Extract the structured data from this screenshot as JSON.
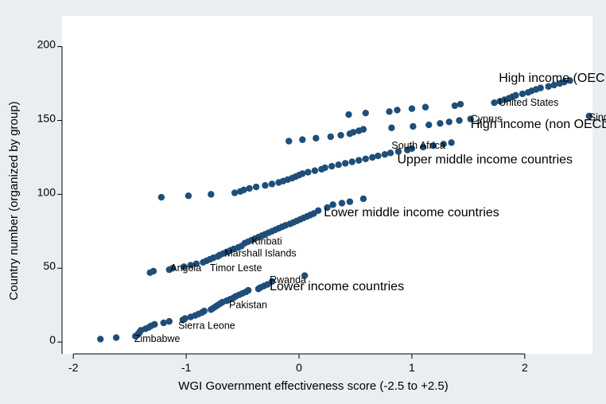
{
  "chart_data": {
    "type": "scatter",
    "xlabel": "WGI Government effectiveness score (-2.5 to +2.5)",
    "ylabel": "Country number (organized by group)",
    "xlim": [
      -2.1,
      2.6
    ],
    "ylim": [
      -8,
      210
    ],
    "xticks": [
      -2,
      -1,
      0,
      1,
      2
    ],
    "yticks": [
      0,
      50,
      100,
      150,
      200
    ],
    "grid": false,
    "colors": {
      "background": "#e9eef3",
      "plot": "#ffffff",
      "marker": "#1f4e79"
    },
    "group_labels": [
      {
        "text": "High income (OECD)",
        "x": 1.77,
        "y": 176
      },
      {
        "text": "High income (non OECD)",
        "x": 1.52,
        "y": 145
      },
      {
        "text": "Upper middle income countries",
        "x": 0.87,
        "y": 121
      },
      {
        "text": "Lower middle income countries",
        "x": 0.22,
        "y": 85
      },
      {
        "text": "Lower income countries",
        "x": -0.26,
        "y": 35
      }
    ],
    "country_labels": [
      {
        "text": "United States",
        "x": 1.77,
        "y": 160
      },
      {
        "text": "Singapore",
        "x": 2.57,
        "y": 150
      },
      {
        "text": "Cyprus",
        "x": 1.52,
        "y": 149
      },
      {
        "text": "South Africa",
        "x": 0.82,
        "y": 131
      },
      {
        "text": "Kiribati",
        "x": -0.42,
        "y": 66
      },
      {
        "text": "Marshall Islands",
        "x": -0.66,
        "y": 58
      },
      {
        "text": "Angola",
        "x": -1.14,
        "y": 48
      },
      {
        "text": "Timor Leste",
        "x": -0.79,
        "y": 48
      },
      {
        "text": "Rwanda",
        "x": -0.26,
        "y": 40
      },
      {
        "text": "Pakistan",
        "x": -0.62,
        "y": 23
      },
      {
        "text": "Sierra Leone",
        "x": -1.07,
        "y": 9
      },
      {
        "text": "Zimbabwe",
        "x": -1.46,
        "y": 0
      }
    ],
    "series": [
      {
        "group": "Lower income countries",
        "x": [
          -1.76,
          -1.62,
          -1.45,
          -1.43,
          -1.42,
          -1.41,
          -1.4,
          -1.36,
          -1.33,
          -1.31,
          -1.28,
          -1.2,
          -1.15,
          -1.03,
          -1.01,
          -0.96,
          -0.92,
          -0.89,
          -0.86,
          -0.84,
          -0.78,
          -0.76,
          -0.74,
          -0.72,
          -0.7,
          -0.68,
          -0.64,
          -0.61,
          -0.58,
          -0.56,
          -0.53,
          -0.5,
          -0.47,
          -0.45,
          -0.36,
          -0.34,
          -0.31,
          -0.28,
          -0.24,
          0.05
        ],
        "y": [
          2,
          3,
          4,
          5,
          6,
          7,
          8,
          9,
          10,
          11,
          12,
          13,
          14,
          15,
          16,
          17,
          18,
          19,
          20,
          21,
          22,
          23,
          24,
          25,
          26,
          27,
          28,
          29,
          30,
          31,
          32,
          33,
          34,
          35,
          36,
          37,
          38,
          39,
          41,
          45
        ]
      },
      {
        "group": "Lower middle income countries",
        "x": [
          -1.32,
          -1.29,
          -1.15,
          -1.12,
          -1.02,
          -0.96,
          -0.91,
          -0.85,
          -0.82,
          -0.79,
          -0.76,
          -0.72,
          -0.7,
          -0.67,
          -0.64,
          -0.61,
          -0.58,
          -0.54,
          -0.51,
          -0.48,
          -0.45,
          -0.42,
          -0.39,
          -0.36,
          -0.33,
          -0.3,
          -0.27,
          -0.24,
          -0.21,
          -0.18,
          -0.15,
          -0.12,
          -0.08,
          -0.05,
          -0.02,
          0.01,
          0.04,
          0.07,
          0.1,
          0.13,
          0.17,
          0.25,
          0.3,
          0.38,
          0.45,
          0.57
        ],
        "y": [
          47,
          48,
          49,
          50,
          51,
          52,
          53,
          54,
          55,
          56,
          57,
          58,
          59,
          60,
          61,
          62,
          63,
          64,
          65,
          67,
          68,
          69,
          70,
          71,
          72,
          73,
          74,
          75,
          76,
          77,
          78,
          79,
          80,
          81,
          82,
          83,
          84,
          85,
          86,
          87,
          89,
          91,
          93,
          94,
          95,
          97
        ]
      },
      {
        "group": "Upper middle income countries",
        "x": [
          -1.22,
          -0.98,
          -0.78,
          -0.57,
          -0.52,
          -0.49,
          -0.44,
          -0.38,
          -0.3,
          -0.24,
          -0.18,
          -0.14,
          -0.1,
          -0.06,
          -0.03,
          0.0,
          0.03,
          0.08,
          0.14,
          0.2,
          0.23,
          0.29,
          0.35,
          0.41,
          0.47,
          0.53,
          0.59,
          0.65,
          0.7,
          0.76,
          0.81,
          0.88,
          0.96,
          1.0,
          1.1,
          1.19,
          1.28,
          1.35
        ],
        "y": [
          98,
          99,
          100,
          101,
          102,
          103,
          104,
          105,
          106,
          107,
          108,
          109,
          110,
          111,
          112,
          113,
          114,
          115,
          116,
          117,
          118,
          119,
          120,
          121,
          122,
          123,
          124,
          125,
          126,
          127,
          128,
          129,
          130,
          131,
          132,
          133,
          134,
          135
        ]
      },
      {
        "group": "High income (non OECD)",
        "x": [
          -0.09,
          0.03,
          0.15,
          0.28,
          0.37,
          0.45,
          0.48,
          0.53,
          0.57,
          0.82,
          1.01,
          1.15,
          1.25,
          1.33,
          1.42,
          1.52,
          2.57
        ],
        "y": [
          136,
          137,
          138,
          139,
          140,
          141,
          142,
          143,
          144,
          145,
          146,
          147,
          148,
          149,
          150,
          151,
          153
        ]
      },
      {
        "group": "High income (OECD)",
        "x": [
          0.44,
          0.59,
          0.8,
          0.87,
          1.0,
          1.12,
          1.38,
          1.43,
          1.73,
          1.78,
          1.82,
          1.86,
          1.89,
          1.92,
          1.98,
          2.03,
          2.06,
          2.1,
          2.14,
          2.21,
          2.26,
          2.31,
          2.35,
          2.4
        ],
        "y": [
          154,
          155,
          156,
          157,
          158,
          159,
          160,
          161,
          162,
          163,
          164,
          165,
          166,
          167,
          168,
          169,
          170,
          171,
          172,
          173,
          174,
          175,
          176,
          177
        ]
      }
    ]
  }
}
